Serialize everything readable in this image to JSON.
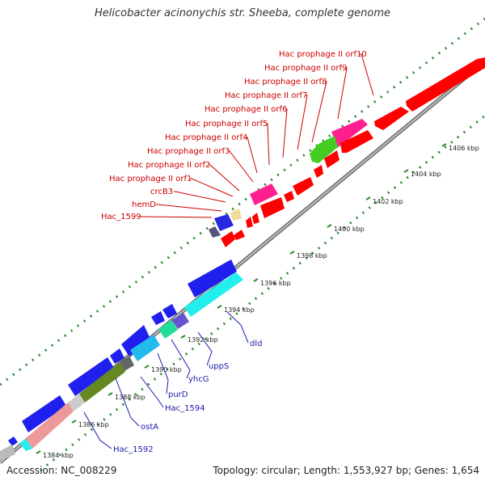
{
  "title": "Helicobacter acinonychis str. Sheeba, complete genome",
  "footer": {
    "accession": "Accession: NC_008229",
    "summary": "Topology: circular; Length: 1,553,927 bp; Genes: 1,654"
  },
  "colors": {
    "backbone": "#7a7a7a",
    "guide_dots": "#2a8a2a",
    "label_red": "#cc0000",
    "label_blue": "#1a1aaa",
    "tick_text": "#222222"
  },
  "scale_labels": [
    "1384 kbp",
    "1386 kbp",
    "1388 kbp",
    "1390 kbp",
    "1392 kbp",
    "1394 kbp",
    "1396 kbp",
    "1398 kbp",
    "1400 kbp",
    "1402 kbp",
    "1404 kbp",
    "1406 kbp"
  ],
  "upper_gene_labels": [
    "Hac prophage II orf10",
    "Hac prophage II orf9",
    "Hac prophage II orf8",
    "Hac prophage II orf7",
    "Hac prophage II orf6",
    "Hac prophage II orf5",
    "Hac prophage II orf4",
    "Hac prophage II orf3",
    "Hac prophage II orf2",
    "Hac prophage II orf1",
    "crcB3",
    "hemD",
    "Hac_1599"
  ],
  "lower_gene_labels": [
    "dld",
    "uppS",
    "yhcG",
    "purD",
    "Hac_1594",
    "ostA",
    "Hac_1592"
  ]
}
